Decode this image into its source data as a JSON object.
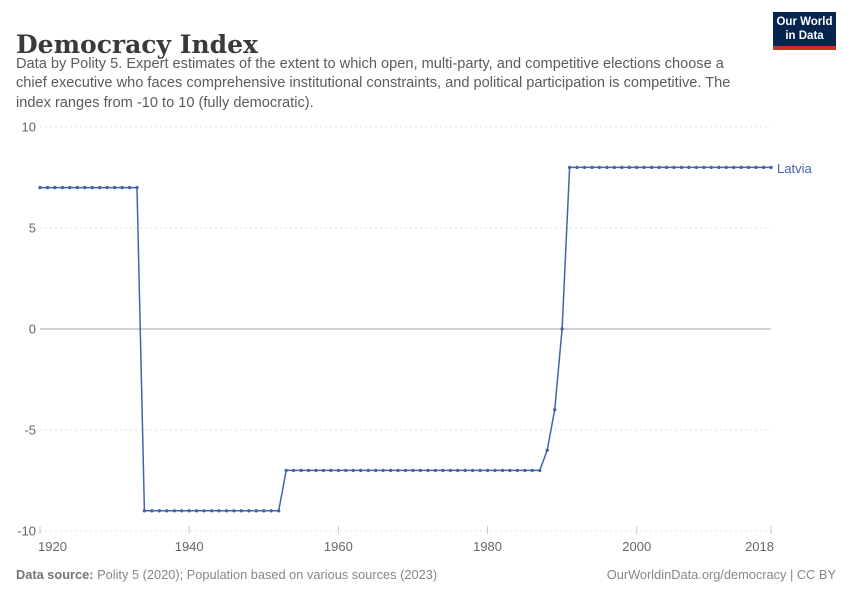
{
  "header": {
    "title": "Democracy Index",
    "subtitle_lines": [
      "Data by Polity 5. Expert estimates of the extent to which open, multi-party, and competitive elections choose a",
      "chief executive who faces comprehensive institutional constraints, and political participation is competitive. The",
      "index ranges from -10 to 10 (fully democratic)."
    ],
    "logo": {
      "line1": "Our World",
      "line2": "in Data"
    }
  },
  "colors": {
    "line": "#4264a8",
    "gridline": "#e2e2e2",
    "zero_line": "#a6a6a6",
    "tick_mark": "#c9c9c9",
    "axis_text": "#666666",
    "logo_bg": "#06254e",
    "logo_red": "#c9331f"
  },
  "chart_data": {
    "type": "line",
    "title": "Democracy Index",
    "xlabel": "",
    "ylabel": "",
    "xlim": [
      1920,
      2018
    ],
    "ylim": [
      -10,
      10
    ],
    "x_ticks": [
      1920,
      1940,
      1960,
      1980,
      2000,
      2018
    ],
    "y_ticks": [
      10,
      5,
      0,
      -5,
      -10
    ],
    "grid": "horizontal-dashed",
    "legend": "inline-end-label",
    "markers": true,
    "series": [
      {
        "name": "Latvia",
        "start_year": 1920,
        "end_year": 2018,
        "values": [
          7,
          7,
          7,
          7,
          7,
          7,
          7,
          7,
          7,
          7,
          7,
          7,
          7,
          7,
          -9,
          -9,
          -9,
          -9,
          -9,
          -9,
          -9,
          -9,
          -9,
          -9,
          -9,
          -9,
          -9,
          -9,
          -9,
          -9,
          -9,
          -9,
          -9,
          -7,
          -7,
          -7,
          -7,
          -7,
          -7,
          -7,
          -7,
          -7,
          -7,
          -7,
          -7,
          -7,
          -7,
          -7,
          -7,
          -7,
          -7,
          -7,
          -7,
          -7,
          -7,
          -7,
          -7,
          -7,
          -7,
          -7,
          -7,
          -7,
          -7,
          -7,
          -7,
          -7,
          -7,
          -7,
          -6,
          -4,
          0,
          8,
          8,
          8,
          8,
          8,
          8,
          8,
          8,
          8,
          8,
          8,
          8,
          8,
          8,
          8,
          8,
          8,
          8,
          8,
          8,
          8,
          8,
          8,
          8,
          8,
          8,
          8,
          8
        ]
      }
    ]
  },
  "footer": {
    "data_source_label": "Data source:",
    "data_source_text": " Polity 5 (2020); Population based on various sources (2023)",
    "right_text": "OurWorldinData.org/democracy | CC BY"
  }
}
